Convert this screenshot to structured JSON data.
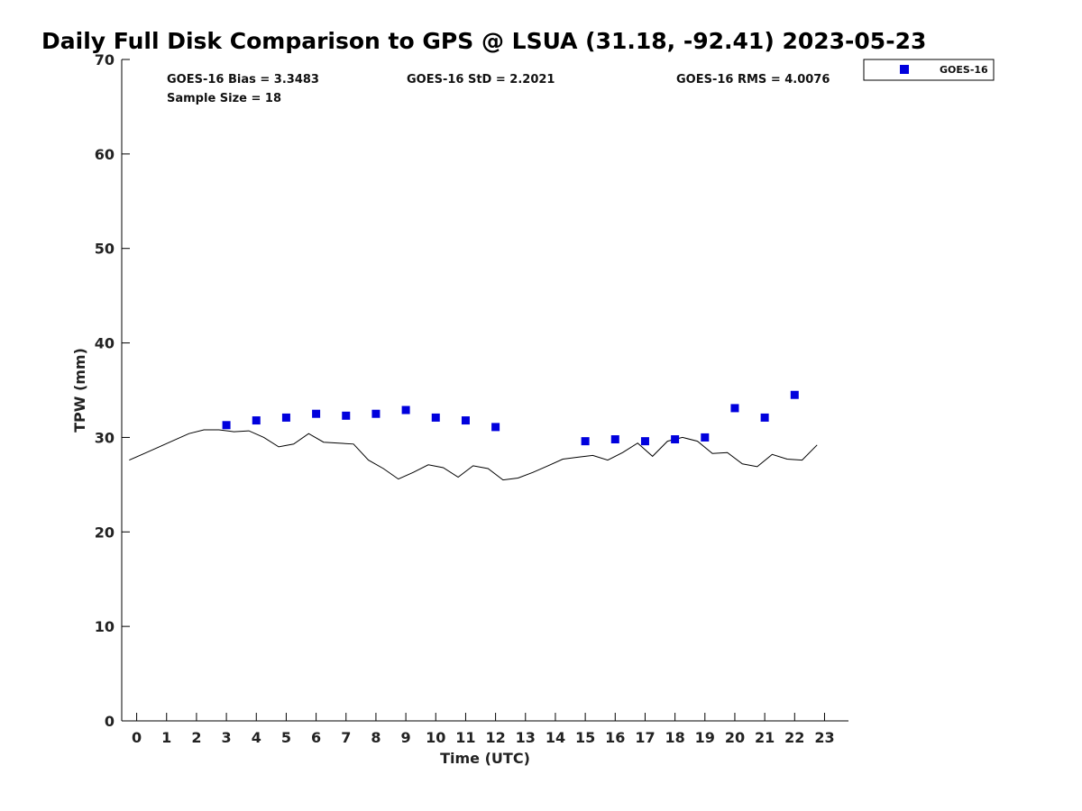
{
  "chart_data": {
    "type": "scatter",
    "title": "Daily Full Disk Comparison to GPS @ LSUA (31.18, -92.41) 2023-05-23",
    "xlabel": "Time (UTC)",
    "ylabel": "TPW (mm)",
    "xlim": [
      -0.5,
      23.8
    ],
    "ylim": [
      0,
      70
    ],
    "xticks": [
      0,
      1,
      2,
      3,
      4,
      5,
      6,
      7,
      8,
      9,
      10,
      11,
      12,
      13,
      14,
      15,
      16,
      17,
      18,
      19,
      20,
      21,
      22,
      23
    ],
    "yticks": [
      0,
      10,
      20,
      30,
      40,
      50,
      60,
      70
    ],
    "grid": false,
    "legend_position": "top-right",
    "stats": {
      "bias": "GOES-16 Bias = 3.3483",
      "std": "GOES-16 StD = 2.2021",
      "rms": "GOES-16 RMS = 4.0076",
      "sample": "Sample Size = 18"
    },
    "series": [
      {
        "name": "GOES-16",
        "kind": "scatter",
        "marker": "square",
        "color": "#0000dd",
        "x": [
          3,
          4,
          5,
          6,
          7,
          8,
          9,
          10,
          11,
          12,
          15,
          16,
          17,
          18,
          19,
          20,
          21,
          22
        ],
        "y": [
          31.3,
          31.8,
          32.1,
          32.5,
          32.3,
          32.5,
          32.9,
          32.1,
          31.8,
          31.1,
          29.6,
          29.8,
          29.6,
          29.8,
          30.0,
          33.1,
          32.1,
          34.5
        ]
      },
      {
        "kind": "line",
        "color": "#000000",
        "x": [
          -0.25,
          0.25,
          0.75,
          1.25,
          1.75,
          2.25,
          2.75,
          3.25,
          3.75,
          4.25,
          4.75,
          5.25,
          5.75,
          6.25,
          6.75,
          7.25,
          7.75,
          8.25,
          8.75,
          9.25,
          9.75,
          10.25,
          10.75,
          11.25,
          11.75,
          12.25,
          12.75,
          13.25,
          13.75,
          14.25,
          14.75,
          15.25,
          15.75,
          16.25,
          16.75,
          17.25,
          17.75,
          18.25,
          18.75,
          19.25,
          19.75,
          20.25,
          20.75,
          21.25,
          21.75,
          22.25,
          22.75
        ],
        "y": [
          27.6,
          28.3,
          29.0,
          29.7,
          30.4,
          30.8,
          30.8,
          30.6,
          30.7,
          30.0,
          29.0,
          29.3,
          30.4,
          29.5,
          29.4,
          29.3,
          27.6,
          26.7,
          25.6,
          26.3,
          27.1,
          26.8,
          25.8,
          27.0,
          26.7,
          25.5,
          25.7,
          26.3,
          27.0,
          27.7,
          27.9,
          28.1,
          27.6,
          28.4,
          29.4,
          28.0,
          29.6,
          30.0,
          29.6,
          28.3,
          28.4,
          27.2,
          26.9,
          28.2,
          27.7,
          27.6,
          29.2
        ]
      }
    ]
  }
}
